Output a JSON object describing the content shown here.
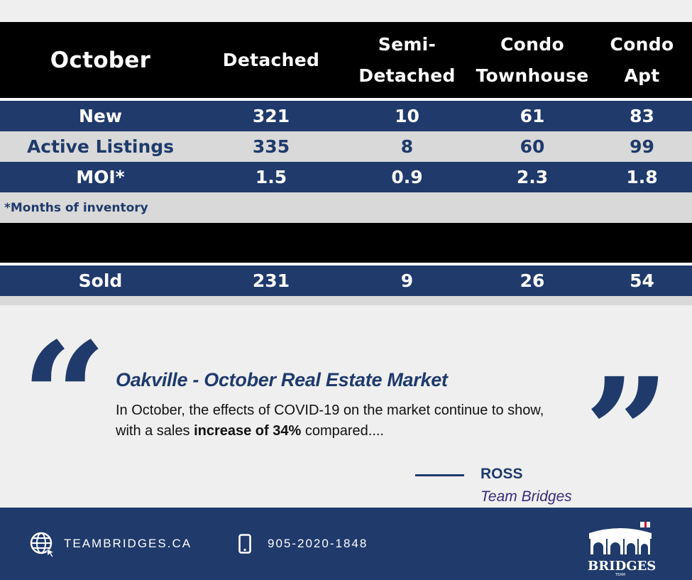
{
  "table": {
    "headers": [
      [
        "October"
      ],
      [
        "Detached"
      ],
      [
        "Semi-",
        "Detached"
      ],
      [
        "Condo",
        "Townhouse"
      ],
      [
        "Condo",
        "Apt"
      ]
    ],
    "rows": [
      {
        "label": "New",
        "values": [
          "321",
          "10",
          "61",
          "83"
        ]
      },
      {
        "label": "Active Listings",
        "values": [
          "335",
          "8",
          "60",
          "99"
        ]
      },
      {
        "label": "MOI*",
        "values": [
          "1.5",
          "0.9",
          "2.3",
          "1.8"
        ]
      }
    ],
    "footnote": "*Months of inventory",
    "sold": {
      "label": "Sold",
      "values": [
        "231",
        "9",
        "26",
        "54"
      ]
    }
  },
  "quote": {
    "open_mark": "“",
    "close_mark": "”",
    "title": "Oakville - October  Real Estate Market",
    "body_before": "In October, the effects of COVID-19 on the market continue to show, with a sales ",
    "body_bold": "increase of 34%",
    "body_after": " compared....",
    "author": "ROSS",
    "team": "Team Bridges"
  },
  "footer": {
    "website": "TEAMBRIDGES.CA",
    "phone": "905-2020-1848",
    "website_icon": "globe-icon",
    "phone_icon": "smartphone-icon",
    "logo_text": "BRIDGES",
    "logo_small": "TEAM"
  },
  "colors": {
    "navy": "#1f3a6b",
    "black": "#000000",
    "light_grey": "#d9d9d9",
    "background": "#efefef"
  }
}
